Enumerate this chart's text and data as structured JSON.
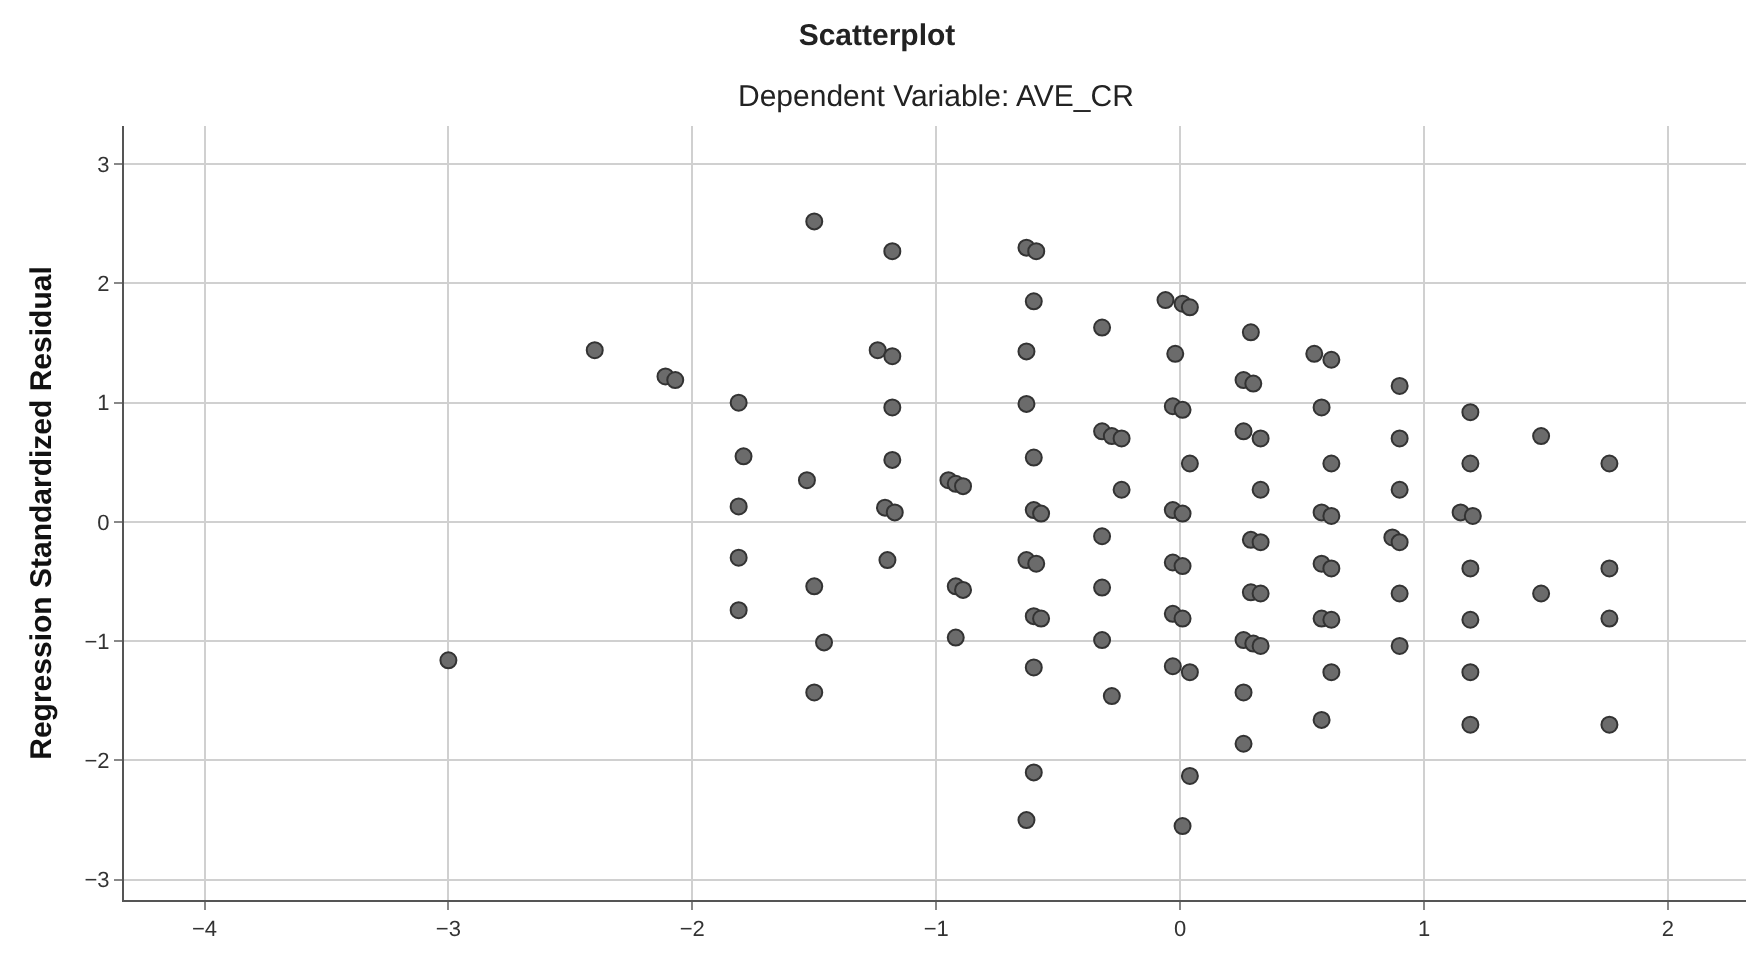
{
  "chart_data": {
    "type": "scatter",
    "title": "Scatterplot",
    "subtitle": "Dependent Variable: AVE_CR",
    "ylabel": "Regression Standardized Residual",
    "xlim": [
      -4.33,
      2.32
    ],
    "ylim": [
      -3.17,
      3.32
    ],
    "xticks": [
      -4,
      -3,
      -2,
      -1,
      0,
      1,
      2
    ],
    "yticks": [
      -3,
      -2,
      -1,
      0,
      1,
      2,
      3
    ],
    "grid": true,
    "marker": "circle",
    "series": [
      {
        "color": "#6b6b6b",
        "x": [
          -3.0,
          -2.4,
          -2.11,
          -2.07,
          -1.81,
          -1.79,
          -1.81,
          -1.81,
          -1.81,
          -1.53,
          -1.5,
          -1.5,
          -1.46,
          -1.5,
          -1.18,
          -1.24,
          -1.18,
          -1.18,
          -1.18,
          -1.21,
          -1.17,
          -1.2,
          -0.63,
          -0.59,
          -0.6,
          -0.63,
          -0.63,
          -0.6,
          -0.95,
          -0.92,
          -0.89,
          -0.6,
          -0.57,
          -0.63,
          -0.59,
          -0.92,
          -0.89,
          -0.92,
          -0.6,
          -0.57,
          -0.6,
          -0.6,
          -0.63,
          -0.32,
          -0.32,
          -0.28,
          -0.24,
          -0.24,
          -0.32,
          -0.32,
          -0.32,
          -0.28,
          -0.06,
          0.01,
          0.04,
          -0.02,
          -0.03,
          0.01,
          0.04,
          -0.03,
          0.01,
          -0.03,
          0.01,
          -0.03,
          0.01,
          -0.03,
          0.04,
          0.04,
          0.01,
          0.29,
          0.26,
          0.3,
          0.26,
          0.33,
          0.33,
          0.29,
          0.33,
          0.29,
          0.33,
          0.26,
          0.3,
          0.33,
          0.26,
          0.26,
          0.55,
          0.62,
          0.58,
          0.62,
          0.58,
          0.62,
          0.58,
          0.62,
          0.58,
          0.62,
          0.62,
          0.58,
          0.9,
          0.9,
          0.9,
          0.87,
          0.9,
          0.9,
          0.9,
          1.19,
          1.19,
          1.15,
          1.2,
          1.19,
          1.19,
          1.19,
          1.19,
          1.48,
          1.48,
          1.76,
          1.76,
          1.76,
          1.76
        ],
        "values": [
          -1.16,
          1.44,
          1.22,
          1.19,
          1.0,
          0.55,
          0.13,
          -0.3,
          -0.74,
          0.35,
          2.52,
          -0.54,
          -1.01,
          -1.43,
          2.27,
          1.44,
          1.39,
          0.96,
          0.52,
          0.12,
          0.08,
          -0.32,
          2.3,
          2.27,
          1.85,
          1.43,
          0.99,
          0.54,
          0.35,
          0.32,
          0.3,
          0.1,
          0.07,
          -0.32,
          -0.35,
          -0.54,
          -0.57,
          -0.97,
          -0.79,
          -0.81,
          -1.22,
          -2.1,
          -2.5,
          1.63,
          0.76,
          0.72,
          0.7,
          0.27,
          -0.12,
          -0.55,
          -0.99,
          -1.46,
          1.86,
          1.83,
          1.8,
          1.41,
          0.97,
          0.94,
          0.49,
          0.1,
          0.07,
          -0.34,
          -0.37,
          -0.77,
          -0.81,
          -1.21,
          -1.26,
          -2.13,
          -2.55,
          1.59,
          1.19,
          1.16,
          0.76,
          0.7,
          0.27,
          -0.15,
          -0.17,
          -0.59,
          -0.6,
          -0.99,
          -1.02,
          -1.04,
          -1.43,
          -1.86,
          1.41,
          1.36,
          0.96,
          0.49,
          0.08,
          0.05,
          -0.35,
          -0.39,
          -0.81,
          -0.82,
          -1.26,
          -1.66,
          1.14,
          0.7,
          0.27,
          -0.13,
          -0.17,
          -0.6,
          -1.04,
          0.92,
          0.49,
          0.08,
          0.05,
          -0.39,
          -0.82,
          -1.26,
          -1.7,
          0.72,
          -0.6,
          0.49,
          -0.39,
          -0.81,
          -1.7
        ]
      }
    ]
  }
}
